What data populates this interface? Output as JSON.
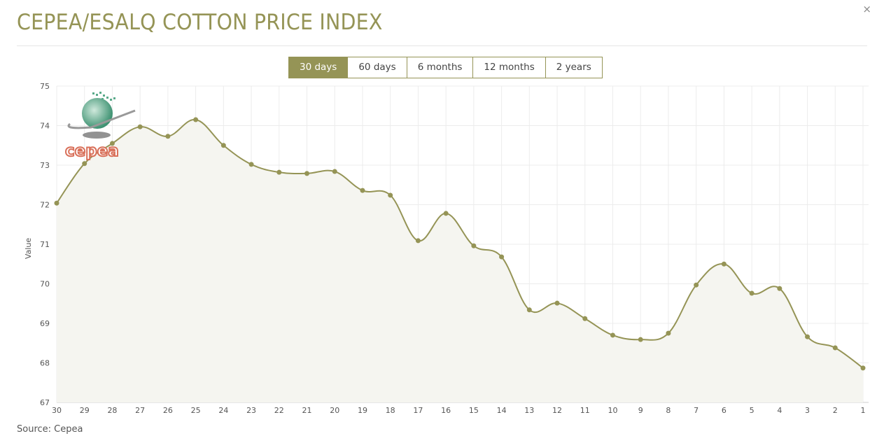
{
  "header": {
    "title": "CEPEA/ESALQ COTTON PRICE INDEX",
    "close_label": "×"
  },
  "ranges": [
    {
      "label": "30 days",
      "active": true
    },
    {
      "label": "60 days",
      "active": false
    },
    {
      "label": "6 months",
      "active": false
    },
    {
      "label": "12 months",
      "active": false
    },
    {
      "label": "2 years",
      "active": false
    }
  ],
  "logo": {
    "text": "cepea"
  },
  "footer": {
    "source": "Source: Cepea"
  },
  "colors": {
    "accent": "#959456",
    "fill": "#f5f5f0",
    "grid": "#ececec"
  },
  "chart_data": {
    "type": "area",
    "title": "CEPEA/ESALQ COTTON PRICE INDEX",
    "xlabel": "",
    "ylabel": "Value",
    "ylim": [
      67,
      75
    ],
    "yticks": [
      67,
      68,
      69,
      70,
      71,
      72,
      73,
      74,
      75
    ],
    "grid": true,
    "categories": [
      "30",
      "29",
      "28",
      "27",
      "26",
      "25",
      "24",
      "23",
      "22",
      "21",
      "20",
      "19",
      "18",
      "17",
      "16",
      "15",
      "14",
      "13",
      "12",
      "11",
      "10",
      "9",
      "8",
      "7",
      "6",
      "5",
      "4",
      "3",
      "2",
      "1"
    ],
    "series": [
      {
        "name": "Value",
        "values": [
          72.04,
          73.04,
          73.55,
          73.97,
          73.73,
          74.15,
          73.5,
          73.02,
          72.82,
          72.79,
          72.84,
          72.36,
          72.24,
          71.09,
          71.78,
          70.96,
          70.68,
          69.34,
          69.51,
          69.12,
          68.7,
          68.59,
          68.75,
          69.97,
          70.5,
          69.76,
          69.88,
          68.66,
          68.38,
          67.87
        ]
      }
    ]
  }
}
